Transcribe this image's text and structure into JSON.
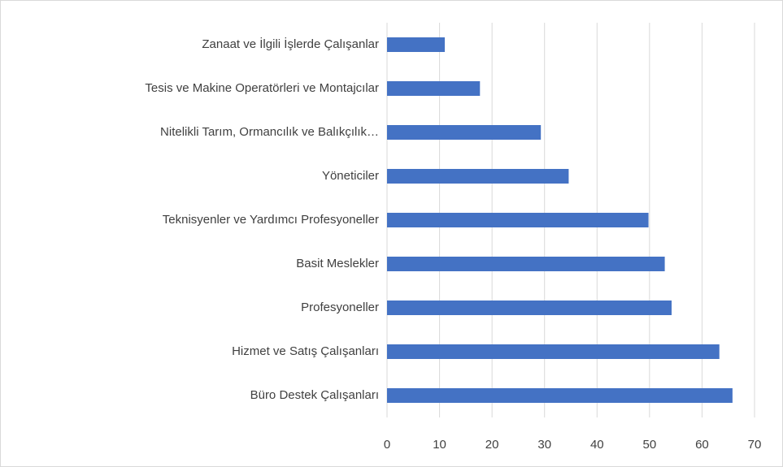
{
  "chart_data": {
    "type": "bar",
    "orientation": "horizontal",
    "categories": [
      "Zanaat ve İlgili İşlerde Çalışanlar",
      "Tesis ve Makine Operatörleri ve Montajcılar",
      "Nitelikli Tarım, Ormancılık ve Balıkçılık…",
      "Yöneticiler",
      "Teknisyenler ve Yardımcı Profesyoneller",
      "Basit Meslekler",
      "Profesyoneller",
      "Hizmet ve Satış Çalışanları",
      "Büro Destek Çalışanları"
    ],
    "values": [
      11,
      17.7,
      29.3,
      34.6,
      49.8,
      52.9,
      54.2,
      63.3,
      65.8
    ],
    "color": "#4472c4",
    "xlim": [
      0,
      70
    ],
    "xticks": [
      0,
      10,
      20,
      30,
      40,
      50,
      60,
      70
    ],
    "grid": true
  }
}
